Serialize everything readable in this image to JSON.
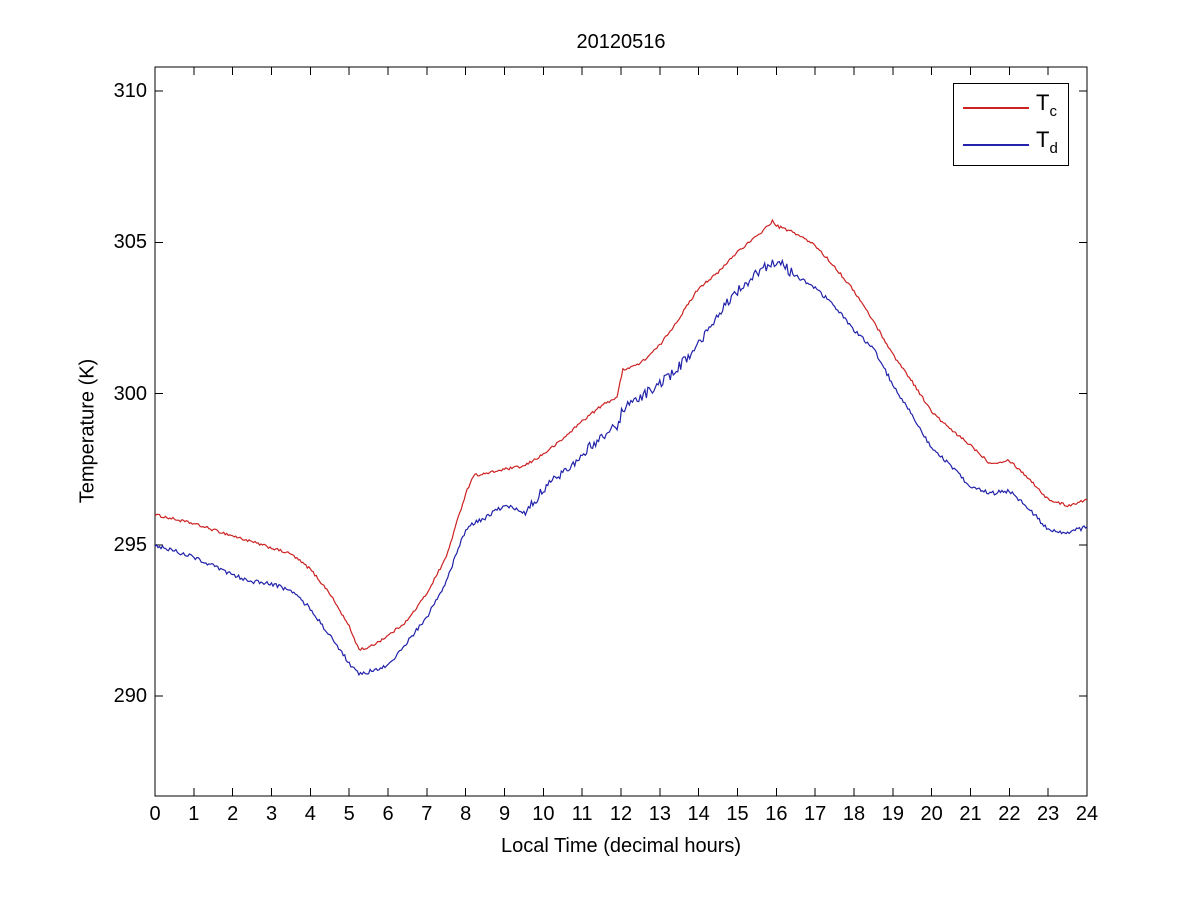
{
  "chart_data": {
    "type": "line",
    "title": "20120516",
    "xlabel": "Local Time (decimal hours)",
    "ylabel": "Temperature (K)",
    "xlim": [
      0,
      24
    ],
    "ylim": [
      286.7,
      310.8
    ],
    "xticks": [
      0,
      1,
      2,
      3,
      4,
      5,
      6,
      7,
      8,
      9,
      10,
      11,
      12,
      13,
      14,
      15,
      16,
      17,
      18,
      19,
      20,
      21,
      22,
      23,
      24
    ],
    "yticks": [
      290,
      295,
      300,
      305,
      310
    ],
    "grid": false,
    "box": true,
    "axis_color": "#000000",
    "background_color": "#ffffff",
    "legend_position": "top-right",
    "x": [
      0,
      0.5,
      1,
      1.5,
      2,
      2.5,
      3,
      3.5,
      4,
      4.5,
      5,
      5.25,
      5.5,
      6,
      6.5,
      7,
      7.5,
      8,
      8.2,
      8.5,
      9,
      9.5,
      10,
      10.5,
      11,
      11.5,
      11.9,
      12.05,
      12.5,
      13,
      13.5,
      14,
      14.5,
      15,
      15.5,
      15.9,
      16,
      16.5,
      17,
      17.5,
      18,
      18.5,
      19,
      19.5,
      20,
      20.5,
      21,
      21.5,
      22,
      22.5,
      23,
      23.5,
      24
    ],
    "series": [
      {
        "name": "T_c",
        "label_base": "T",
        "label_sub": "c",
        "color": "#cc2222",
        "noise_amplitude": 0.045,
        "values": [
          296.0,
          295.85,
          295.7,
          295.5,
          295.3,
          295.1,
          294.9,
          294.7,
          294.2,
          293.4,
          292.3,
          291.55,
          291.6,
          292.0,
          292.5,
          293.4,
          294.6,
          296.7,
          297.3,
          297.35,
          297.5,
          297.6,
          298.0,
          298.5,
          299.1,
          299.6,
          299.9,
          300.8,
          301.0,
          301.6,
          302.5,
          303.5,
          304.0,
          304.7,
          305.2,
          305.7,
          305.55,
          305.3,
          304.9,
          304.2,
          303.4,
          302.4,
          301.3,
          300.4,
          299.4,
          298.8,
          298.3,
          297.7,
          297.8,
          297.2,
          296.5,
          296.3,
          296.5
        ]
      },
      {
        "name": "T_d",
        "label_base": "T",
        "label_sub": "d",
        "color": "#2222aa",
        "noise_amplitude": 0.07,
        "noise_amplitude_active": 0.17,
        "noise_active_range": [
          9.5,
          16.5
        ],
        "values": [
          295.0,
          294.8,
          294.6,
          294.3,
          294.0,
          293.8,
          293.7,
          293.5,
          292.9,
          292.0,
          291.1,
          290.7,
          290.8,
          291.0,
          291.8,
          292.6,
          293.8,
          295.5,
          295.7,
          295.9,
          296.3,
          296.1,
          296.8,
          297.4,
          298.0,
          298.6,
          298.9,
          299.5,
          299.9,
          300.3,
          300.9,
          301.6,
          302.6,
          303.4,
          304.0,
          304.3,
          304.4,
          303.9,
          303.5,
          302.9,
          302.1,
          301.5,
          300.3,
          299.3,
          298.2,
          297.6,
          296.9,
          296.7,
          296.8,
          296.2,
          295.5,
          295.4,
          295.6
        ]
      }
    ]
  }
}
